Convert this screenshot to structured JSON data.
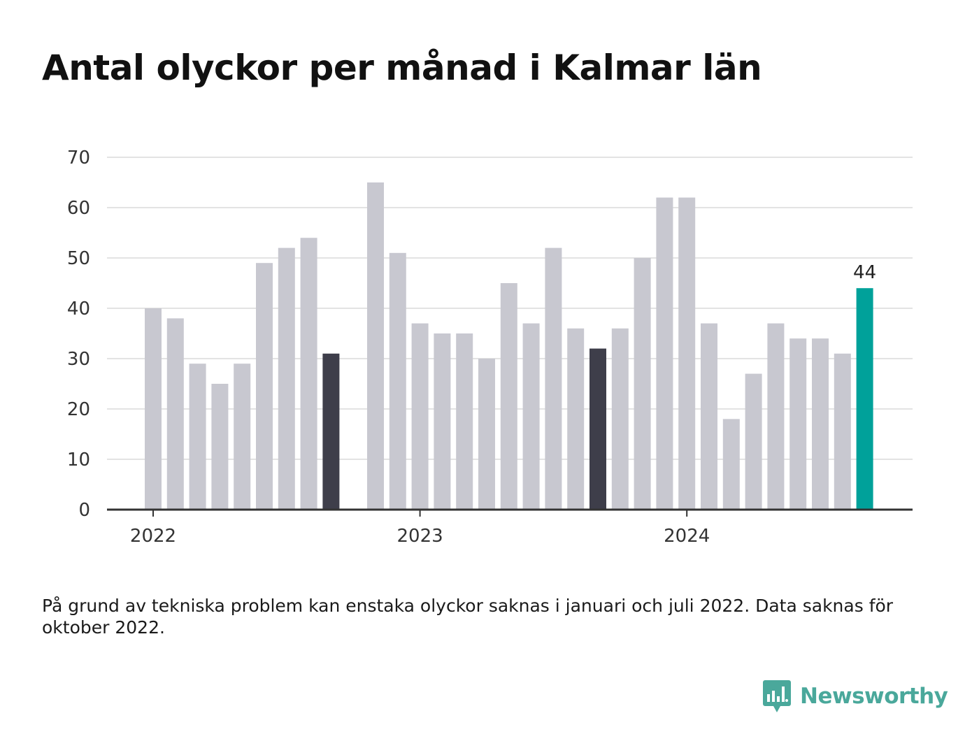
{
  "title": "Antal olyckor per månad i Kalmar län",
  "footnote": "På grund av tekniska problem kan enstaka olyckor saknas i januari och juli 2022. Data saknas för oktober 2022.",
  "brand": {
    "name": "Newsworthy",
    "icon": "bar-chart-speech-icon",
    "color": "#4aa89b"
  },
  "colors": {
    "default": "#c8c8d0",
    "highlight_dark": "#3e3e4a",
    "highlight_latest": "#00a19a",
    "grid": "#e3e3e3",
    "axis": "#333333"
  },
  "chart_data": {
    "type": "bar",
    "x_axis_ticks": [
      {
        "label": "2022",
        "month": 0
      },
      {
        "label": "2023",
        "month": 12
      },
      {
        "label": "2024",
        "month": 24
      }
    ],
    "y_ticks": [
      0,
      10,
      20,
      30,
      40,
      50,
      60,
      70
    ],
    "ylim": [
      0,
      70
    ],
    "grid": true,
    "values": [
      40,
      38,
      29,
      25,
      29,
      49,
      52,
      54,
      31,
      null,
      65,
      51,
      37,
      35,
      35,
      30,
      45,
      37,
      52,
      36,
      32,
      36,
      50,
      62,
      62,
      37,
      18,
      27,
      37,
      34,
      34,
      31,
      44
    ],
    "highlight_dark_months": [
      8,
      20
    ],
    "highlight_latest_month": 32,
    "value_labels": [
      {
        "month": 32,
        "text": "44"
      }
    ]
  }
}
